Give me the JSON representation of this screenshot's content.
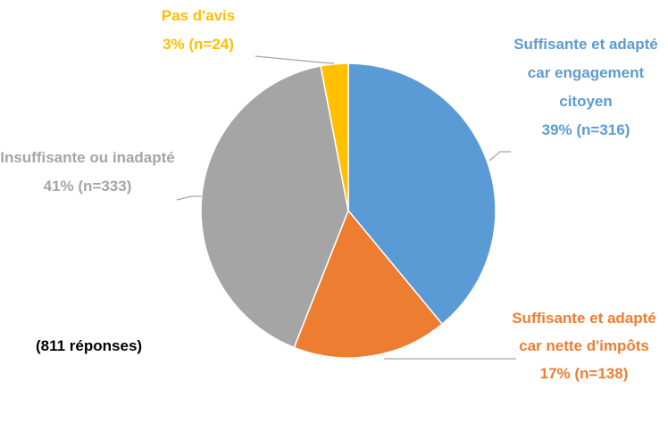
{
  "chart_data": {
    "type": "pie",
    "categories": [
      "Suffisante et adapté car engagement citoyen",
      "Suffisante et adapté car nette d'impôts",
      "Insuffisante ou inadapté",
      "Pas d'avis"
    ],
    "values": [
      39,
      17,
      41,
      3
    ],
    "value_labels": [
      "39% (n=316)",
      "17% (n=138)",
      "41% (n=333)",
      "3% (n=24)"
    ],
    "colors": [
      "#5b9bd5",
      "#ed7d31",
      "#a5a5a5",
      "#ffc000"
    ],
    "annotation": "(811 réponses)"
  }
}
